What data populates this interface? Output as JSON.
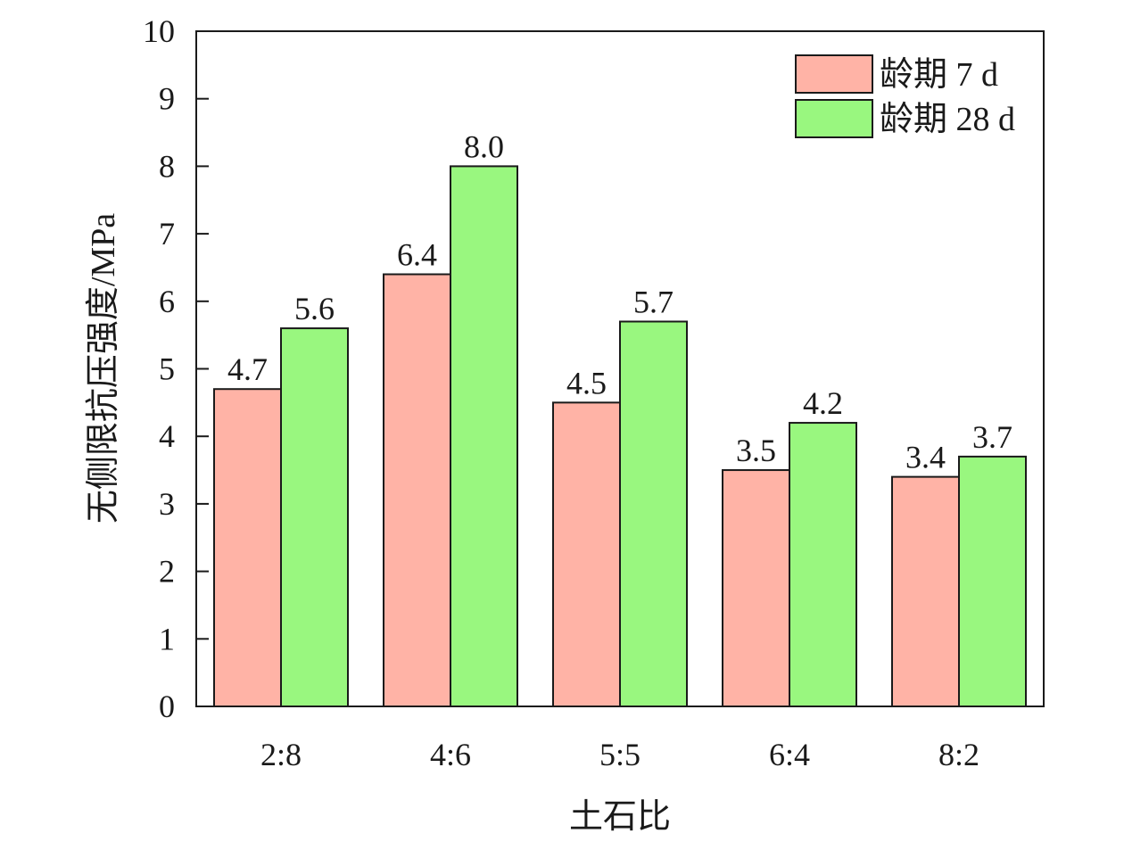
{
  "chart_data": {
    "type": "bar",
    "xlabel": "土石比",
    "ylabel": "无侧限抗压强度/MPa",
    "ylim": [
      0,
      10
    ],
    "yticks": [
      "0",
      "1",
      "2",
      "3",
      "4",
      "5",
      "6",
      "7",
      "8",
      "9",
      "10"
    ],
    "categories": [
      "2:8",
      "4:6",
      "5:5",
      "6:4",
      "8:2"
    ],
    "grid": false,
    "legend_position": "top-right",
    "series": [
      {
        "name": "龄期 7 d",
        "color": "#ffb3a6",
        "values": [
          4.7,
          6.4,
          4.5,
          3.5,
          3.4
        ],
        "labels": [
          "4.7",
          "6.4",
          "4.5",
          "3.5",
          "3.4"
        ]
      },
      {
        "name": "龄期 28 d",
        "color": "#99f77f",
        "values": [
          5.6,
          8.0,
          5.7,
          4.2,
          3.7
        ],
        "labels": [
          "5.6",
          "8.0",
          "5.7",
          "4.2",
          "3.7"
        ]
      }
    ]
  }
}
